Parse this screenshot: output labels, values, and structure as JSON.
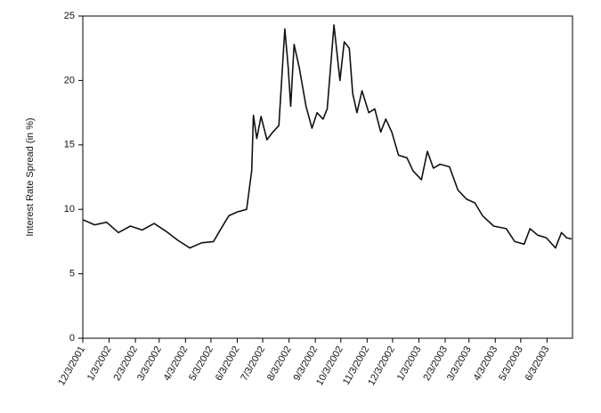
{
  "chart_data": {
    "type": "line",
    "y_label": "Interest Rate Spread (in %)",
    "x": [
      "12/3/2001",
      "12/17/2001",
      "12/31/2001",
      "1/14/2002",
      "1/28/2002",
      "2/11/2002",
      "2/25/2002",
      "3/11/2002",
      "3/25/2002",
      "4/8/2002",
      "4/22/2002",
      "5/6/2002",
      "5/13/2002",
      "5/24/2002",
      "6/3/2002",
      "6/14/2002",
      "6/18/2002",
      "6/20/2002",
      "6/22/2002",
      "6/26/2002",
      "7/1/2002",
      "7/8/2002",
      "7/15/2002",
      "7/22/2002",
      "7/29/2002",
      "8/2/2002",
      "8/5/2002",
      "8/9/2002",
      "8/15/2002",
      "8/23/2002",
      "8/30/2002",
      "9/5/2002",
      "9/12/2002",
      "9/17/2002",
      "9/25/2002",
      "10/2/2002",
      "10/7/2002",
      "10/13/2002",
      "10/17/2002",
      "10/22/2002",
      "10/28/2002",
      "11/5/2002",
      "11/12/2002",
      "11/19/2002",
      "11/25/2002",
      "12/2/2002",
      "12/10/2002",
      "12/20/2002",
      "12/27/2002",
      "1/6/2003",
      "1/13/2003",
      "1/20/2003",
      "1/28/2003",
      "2/8/2003",
      "2/18/2003",
      "2/28/2003",
      "3/10/2003",
      "3/19/2003",
      "4/1/2003",
      "4/16/2003",
      "4/26/2003",
      "5/7/2003",
      "5/14/2003",
      "5/23/2003",
      "6/2/2003",
      "6/13/2003",
      "6/20/2003",
      "6/26/2003",
      "7/2/2003"
    ],
    "series": [
      {
        "color": "#111111",
        "values": [
          9.2,
          8.8,
          9.0,
          8.2,
          8.7,
          8.4,
          8.9,
          8.3,
          7.6,
          7.0,
          7.4,
          7.5,
          8.3,
          9.5,
          9.8,
          10.0,
          12.0,
          13.0,
          17.3,
          15.5,
          17.2,
          15.4,
          16.0,
          16.5,
          24.0,
          21.0,
          18.0,
          22.8,
          21.0,
          18.0,
          16.3,
          17.5,
          17.0,
          17.8,
          24.3,
          20.0,
          23.0,
          22.5,
          19.0,
          17.5,
          19.2,
          17.5,
          17.8,
          16.0,
          17.0,
          16.0,
          14.2,
          14.0,
          13.0,
          12.3,
          14.5,
          13.2,
          13.5,
          13.3,
          11.5,
          10.8,
          10.5,
          9.5,
          8.7,
          8.5,
          7.5,
          7.3,
          8.5,
          8.0,
          7.8,
          7.0,
          8.2,
          7.8,
          7.7
        ]
      }
    ],
    "xlim": [
      "12/3/2001",
      "7/3/2003"
    ],
    "xticks": [
      "12/3/2001",
      "1/3/2002",
      "2/3/2002",
      "3/3/2002",
      "4/3/2002",
      "5/3/2002",
      "6/3/2002",
      "7/3/2002",
      "8/3/2002",
      "9/3/2002",
      "10/3/2002",
      "11/3/2002",
      "12/3/2002",
      "1/3/2003",
      "2/3/2003",
      "3/3/2003",
      "4/3/2003",
      "5/3/2003",
      "6/3/2003"
    ],
    "ylim": [
      0,
      25
    ],
    "yticks": [
      0,
      5,
      10,
      15,
      20,
      25
    ],
    "grid": false
  }
}
